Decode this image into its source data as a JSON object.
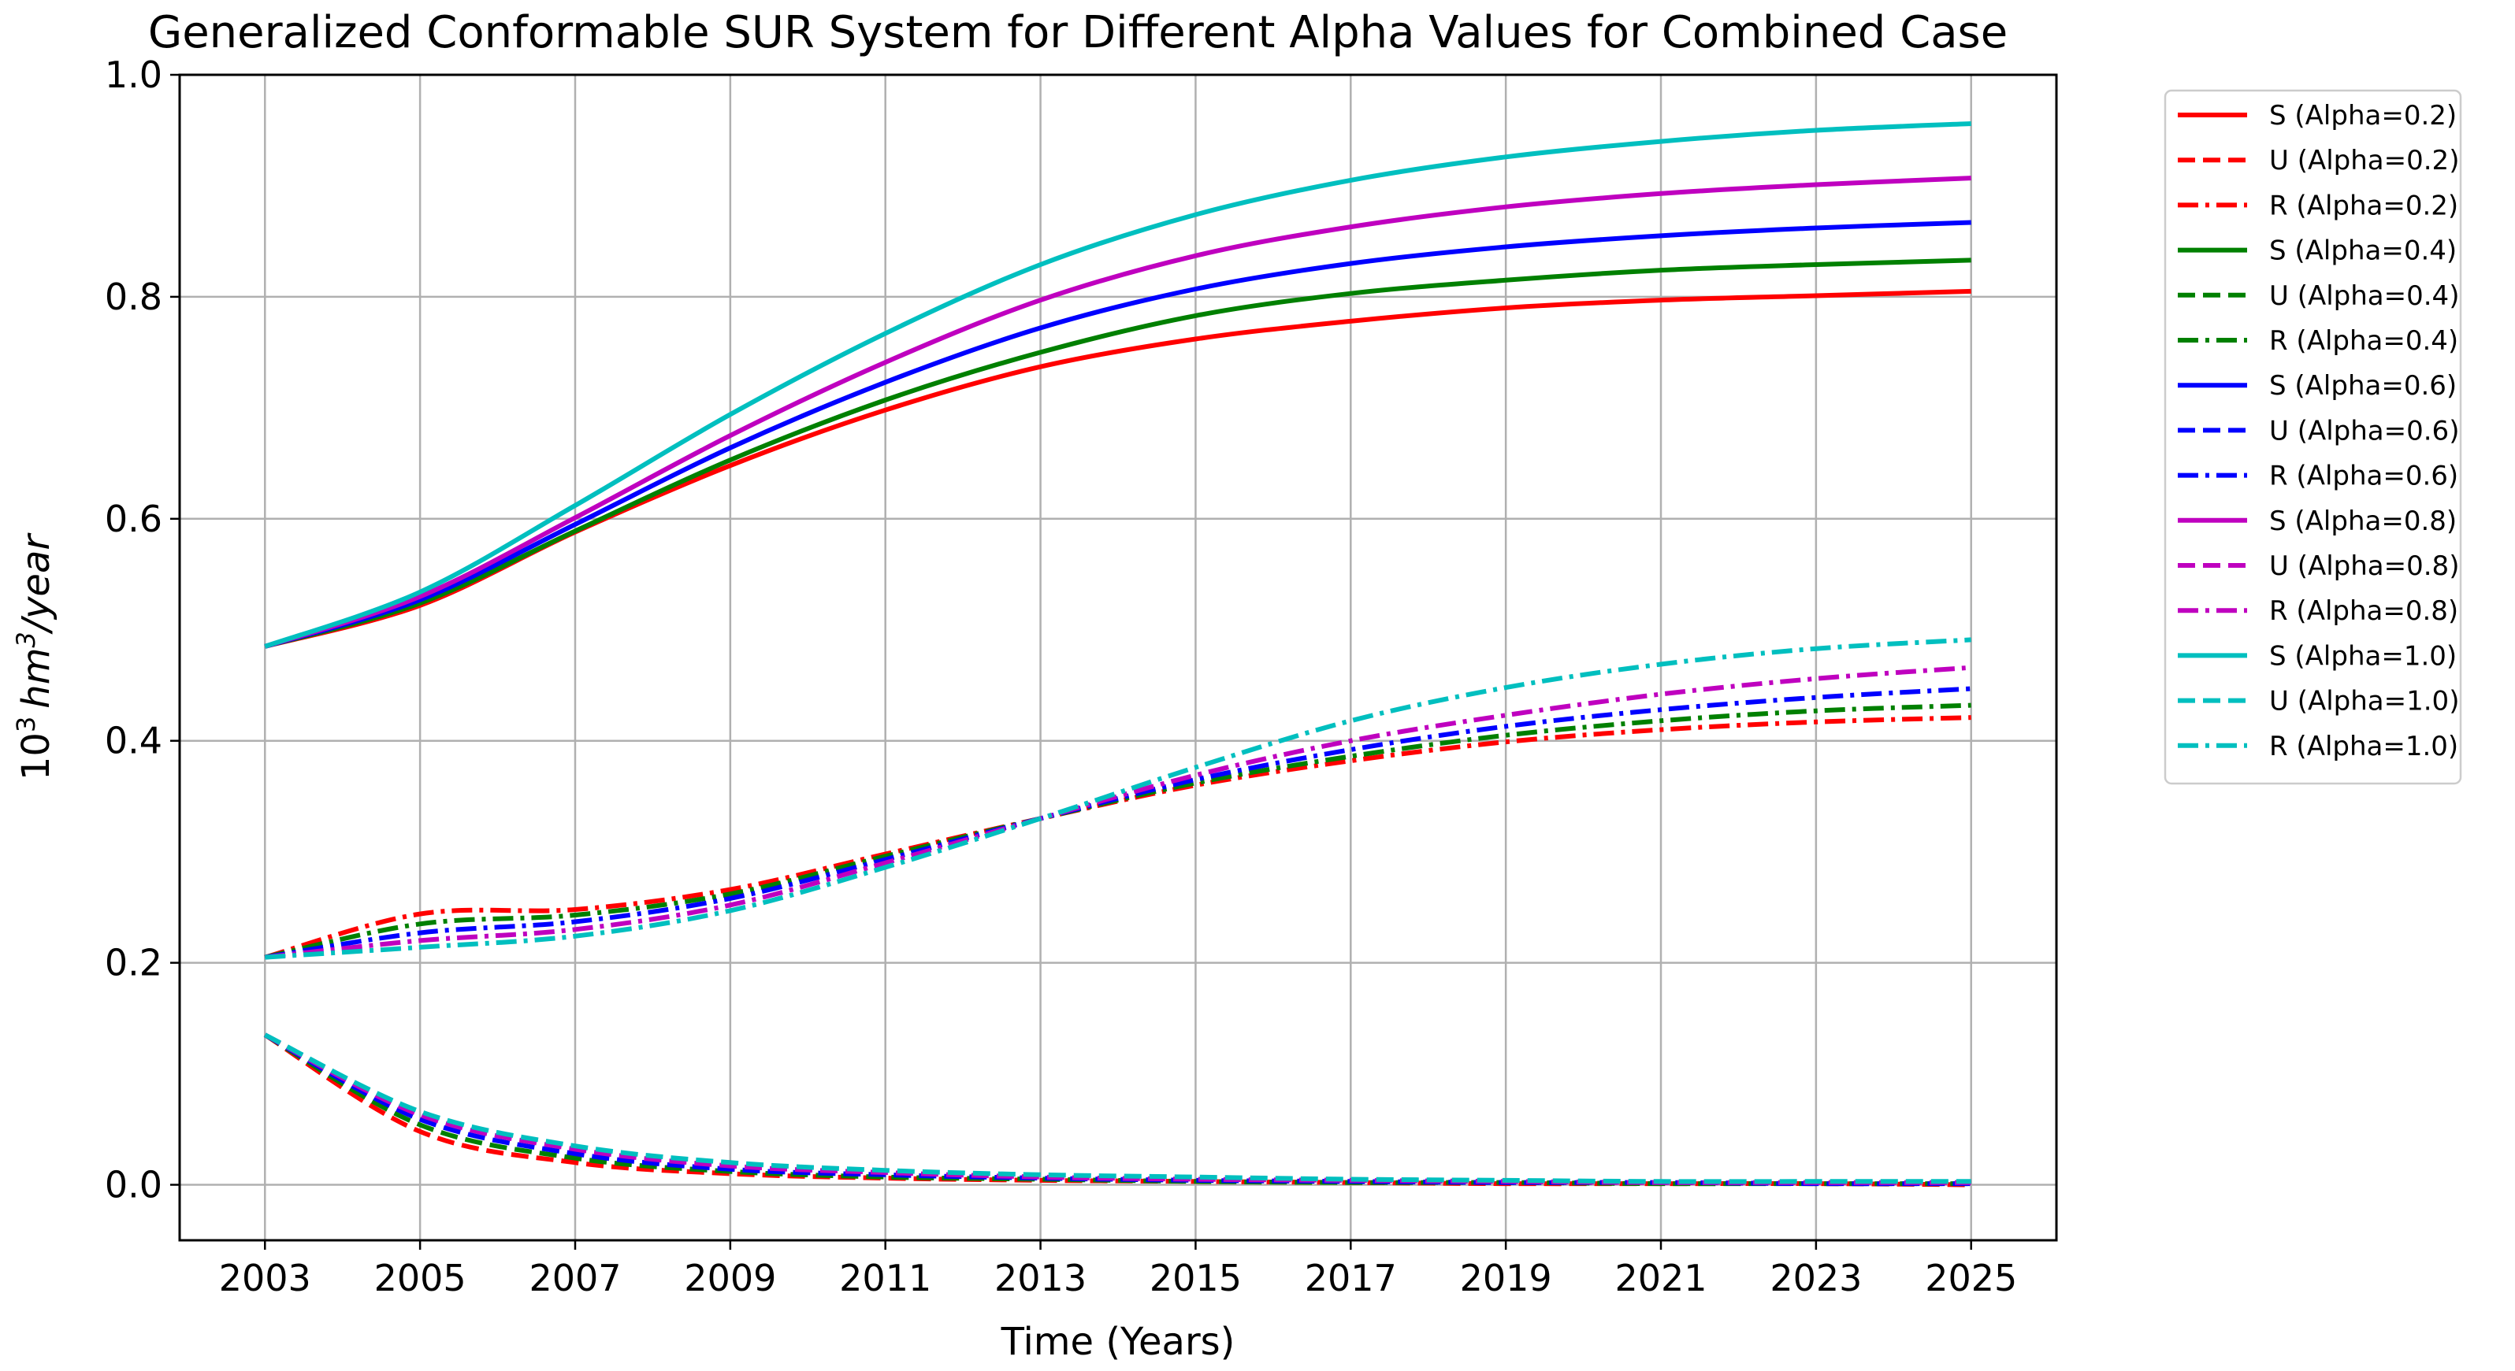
{
  "chart_data": {
    "type": "line",
    "title": "Generalized Conformable SUR System for Different Alpha Values for Combined Case",
    "xlabel": "Time (Years)",
    "ylabel": {
      "base": "10",
      "exp": "3",
      "unit": "hm",
      "unit_exp": "3",
      "rest": "/year"
    },
    "xlim": [
      2001.9,
      2026.1
    ],
    "ylim": [
      -0.05,
      1.0
    ],
    "xticks": [
      2003,
      2005,
      2007,
      2009,
      2011,
      2013,
      2015,
      2017,
      2019,
      2021,
      2023,
      2025
    ],
    "yticks": [
      "0.0",
      "0.2",
      "0.4",
      "0.6",
      "0.8",
      "1.0"
    ],
    "grid": true,
    "legend_position": "outside-right",
    "x": [
      2003,
      2005,
      2007,
      2009,
      2011,
      2013,
      2015,
      2017,
      2019,
      2021,
      2023,
      2025
    ],
    "series": [
      {
        "name": "S (Alpha=0.2)",
        "color": "#ff0000",
        "style": "solid",
        "values": [
          0.485,
          0.522,
          0.588,
          0.648,
          0.698,
          0.737,
          0.762,
          0.778,
          0.79,
          0.797,
          0.801,
          0.805
        ]
      },
      {
        "name": "U (Alpha=0.2)",
        "color": "#ff0000",
        "style": "dashed",
        "values": [
          0.135,
          0.048,
          0.02,
          0.01,
          0.006,
          0.004,
          0.003,
          0.002,
          0.001,
          0.001,
          0.001,
          0.0
        ]
      },
      {
        "name": "R (Alpha=0.2)",
        "color": "#ff0000",
        "style": "dashdot",
        "values": [
          0.205,
          0.244,
          0.248,
          0.266,
          0.298,
          0.33,
          0.36,
          0.382,
          0.399,
          0.41,
          0.417,
          0.421
        ]
      },
      {
        "name": "S (Alpha=0.4)",
        "color": "#008000",
        "style": "solid",
        "values": [
          0.485,
          0.524,
          0.589,
          0.653,
          0.707,
          0.75,
          0.783,
          0.803,
          0.815,
          0.824,
          0.829,
          0.833
        ]
      },
      {
        "name": "U (Alpha=0.4)",
        "color": "#008000",
        "style": "dashed",
        "values": [
          0.135,
          0.054,
          0.024,
          0.012,
          0.007,
          0.005,
          0.003,
          0.002,
          0.002,
          0.001,
          0.001,
          0.001
        ]
      },
      {
        "name": "R (Alpha=0.4)",
        "color": "#008000",
        "style": "dashdot",
        "values": [
          0.205,
          0.235,
          0.243,
          0.262,
          0.296,
          0.33,
          0.362,
          0.386,
          0.405,
          0.418,
          0.427,
          0.432
        ]
      },
      {
        "name": "S (Alpha=0.6)",
        "color": "#0000ff",
        "style": "solid",
        "values": [
          0.485,
          0.527,
          0.595,
          0.664,
          0.723,
          0.772,
          0.807,
          0.83,
          0.845,
          0.855,
          0.862,
          0.867
        ]
      },
      {
        "name": "U (Alpha=0.6)",
        "color": "#0000ff",
        "style": "dashed",
        "values": [
          0.135,
          0.059,
          0.028,
          0.014,
          0.009,
          0.006,
          0.004,
          0.003,
          0.002,
          0.002,
          0.001,
          0.001
        ]
      },
      {
        "name": "R (Alpha=0.6)",
        "color": "#0000ff",
        "style": "dashdot",
        "values": [
          0.205,
          0.227,
          0.237,
          0.258,
          0.293,
          0.33,
          0.365,
          0.392,
          0.413,
          0.428,
          0.439,
          0.447
        ]
      },
      {
        "name": "S (Alpha=0.8)",
        "color": "#bf00bf",
        "style": "solid",
        "values": [
          0.485,
          0.53,
          0.601,
          0.675,
          0.741,
          0.797,
          0.837,
          0.863,
          0.881,
          0.893,
          0.901,
          0.907
        ]
      },
      {
        "name": "U (Alpha=0.8)",
        "color": "#bf00bf",
        "style": "dashed",
        "values": [
          0.135,
          0.063,
          0.032,
          0.017,
          0.011,
          0.007,
          0.005,
          0.004,
          0.003,
          0.002,
          0.002,
          0.002
        ]
      },
      {
        "name": "R (Alpha=0.8)",
        "color": "#bf00bf",
        "style": "dashdot",
        "values": [
          0.205,
          0.22,
          0.23,
          0.252,
          0.29,
          0.33,
          0.369,
          0.4,
          0.423,
          0.442,
          0.456,
          0.466
        ]
      },
      {
        "name": "S (Alpha=1.0)",
        "color": "#00bfbf",
        "style": "solid",
        "values": [
          0.485,
          0.534,
          0.612,
          0.694,
          0.767,
          0.829,
          0.874,
          0.905,
          0.926,
          0.94,
          0.95,
          0.956
        ]
      },
      {
        "name": "U (Alpha=1.0)",
        "color": "#00bfbf",
        "style": "dashed",
        "values": [
          0.135,
          0.066,
          0.035,
          0.02,
          0.013,
          0.009,
          0.007,
          0.005,
          0.004,
          0.003,
          0.003,
          0.003
        ]
      },
      {
        "name": "R (Alpha=1.0)",
        "color": "#00bfbf",
        "style": "dashdot",
        "values": [
          0.205,
          0.214,
          0.224,
          0.247,
          0.286,
          0.33,
          0.376,
          0.418,
          0.448,
          0.469,
          0.483,
          0.491
        ]
      }
    ]
  }
}
